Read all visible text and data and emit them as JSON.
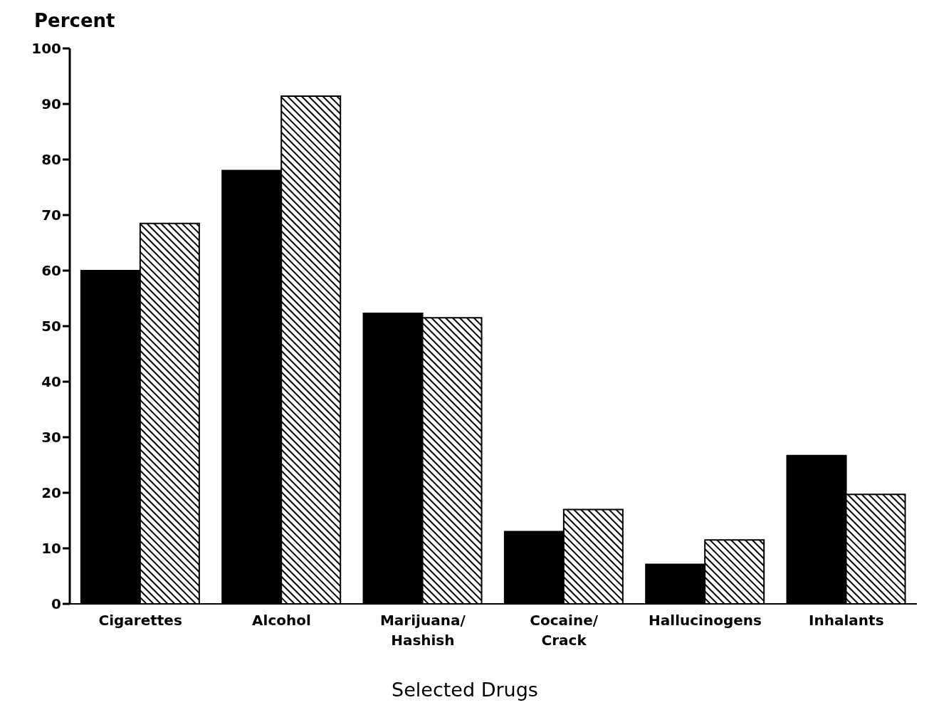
{
  "chart_data": {
    "type": "bar",
    "ylabel": "Percent",
    "xlabel": "Selected Drugs",
    "categories": [
      "Cigarettes",
      "Alcohol",
      "Marijuana/\nHashish",
      "Cocaine/\nCrack",
      "Hallucinogens",
      "Inhalants"
    ],
    "series": [
      {
        "color": "#000000",
        "values": [
          60,
          78,
          52.3,
          13,
          7.1,
          26.7
        ]
      },
      {
        "color": "#000000",
        "values": [
          68.5,
          91.4,
          51.5,
          17,
          11.5,
          19.7
        ]
      }
    ],
    "ylim": [
      0,
      100
    ],
    "yticks": [
      0,
      10,
      20,
      30,
      40,
      50,
      60,
      70,
      80,
      90,
      100
    ],
    "grid": false,
    "legend": false
  }
}
